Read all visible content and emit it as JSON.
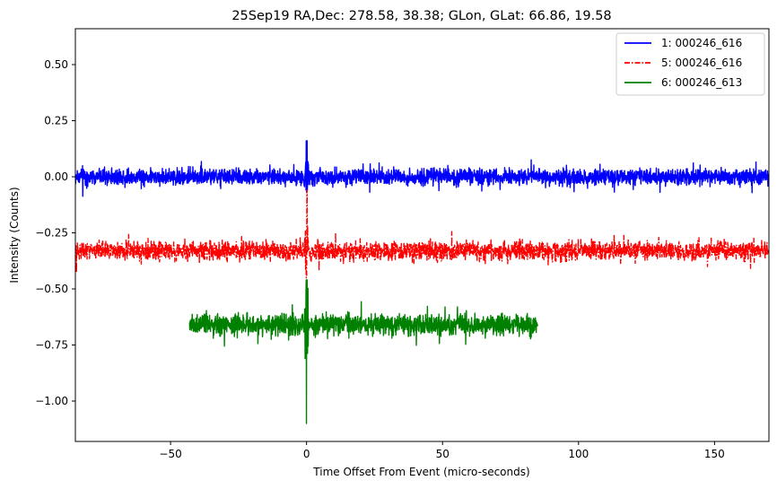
{
  "chart_data": {
    "type": "line",
    "title": "25Sep19 RA,Dec:  278.58,  38.38; GLon, GLat:   66.86,  19.58",
    "xlabel": "Time Offset From Event (micro-seconds)",
    "ylabel": "Intensity (Counts)",
    "xlim": [
      -85,
      170
    ],
    "ylim": [
      -1.18,
      0.66
    ],
    "xticks": [
      -50,
      0,
      50,
      100,
      150
    ],
    "xtick_labels": [
      "−50",
      "0",
      "50",
      "100",
      "150"
    ],
    "yticks": [
      0.5,
      0.25,
      0.0,
      -0.25,
      -0.5,
      -0.75,
      -1.0
    ],
    "ytick_labels": [
      "0.50",
      "0.25",
      "0.00",
      "−0.25",
      "−0.50",
      "−0.75",
      "−1.00"
    ],
    "grid": false,
    "legend_position": "top-right",
    "series": [
      {
        "name": "1: 000246_616",
        "color": "#0000ff",
        "dash": "solid",
        "x_range": [
          -85,
          170
        ],
        "baseline": 0.0,
        "noise_amplitude": 0.035,
        "spike_peak": 0.16,
        "spike_trough": -0.07
      },
      {
        "name": "5: 000246_616",
        "color": "#ff0000",
        "dash": "dashdot",
        "x_range": [
          -85,
          170
        ],
        "baseline": -0.33,
        "noise_amplitude": 0.04,
        "spike_peak": -0.06,
        "spike_trough": -0.45
      },
      {
        "name": "6: 000246_613",
        "color": "#008000",
        "dash": "solid",
        "x_range": [
          -43,
          85
        ],
        "baseline": -0.66,
        "noise_amplitude": 0.045,
        "spike_peak": -0.46,
        "spike_trough": -1.1
      }
    ]
  }
}
